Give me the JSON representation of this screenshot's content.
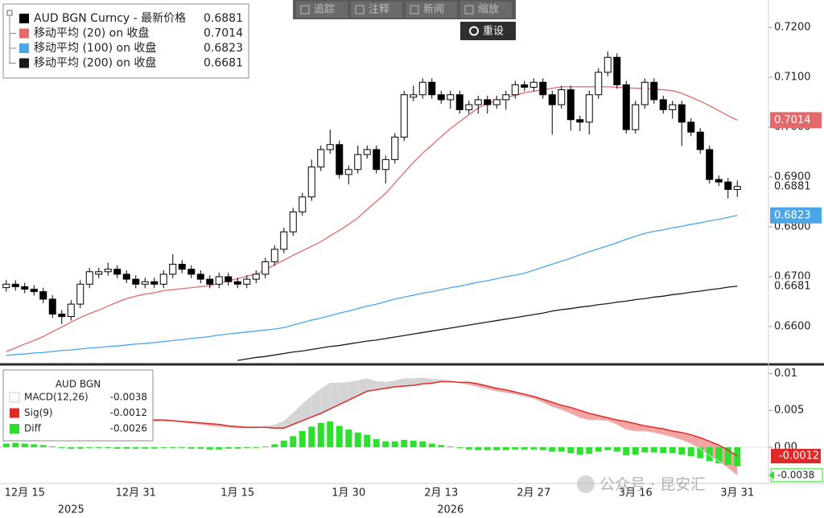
{
  "chart_data": [
    {
      "type": "candlestick",
      "name": "AUD BGN Curncy - 最新价格",
      "up_color": "#ffffff",
      "down_color": "#000000",
      "categories": [
        null,
        null,
        "12月 15",
        null,
        null,
        null,
        null,
        null,
        null,
        null,
        null,
        null,
        null,
        null,
        "12月 31",
        null,
        null,
        null,
        null,
        null,
        null,
        null,
        null,
        null,
        null,
        "1月 15",
        null,
        null,
        null,
        null,
        null,
        null,
        null,
        null,
        null,
        null,
        null,
        "1月 30",
        null,
        null,
        null,
        null,
        null,
        null,
        null,
        null,
        null,
        "2月 13",
        null,
        null,
        null,
        null,
        null,
        null,
        null,
        null,
        null,
        "2月 27",
        null,
        null,
        null,
        null,
        null,
        null,
        null,
        null,
        null,
        null,
        "3月 16",
        null,
        null,
        null,
        null,
        null,
        null,
        null,
        null,
        null,
        null,
        "3月 31"
      ],
      "years": [
        null,
        null,
        null,
        null,
        null,
        null,
        null,
        "2025",
        null,
        null,
        null,
        null,
        null,
        null,
        null,
        null,
        null,
        null,
        null,
        null,
        null,
        null,
        null,
        null,
        null,
        null,
        null,
        null,
        null,
        null,
        null,
        null,
        null,
        null,
        null,
        null,
        null,
        null,
        null,
        null,
        null,
        null,
        null,
        null,
        null,
        null,
        null,
        null,
        "2026",
        null,
        null,
        null,
        null,
        null,
        null,
        null,
        null,
        null,
        null,
        null,
        null,
        null,
        null,
        null,
        null,
        null,
        null,
        null,
        null,
        null,
        null,
        null,
        null,
        null,
        null,
        null,
        null,
        null,
        null,
        null
      ],
      "open": [
        0.6678,
        0.6685,
        0.668,
        0.6675,
        0.667,
        0.6655,
        0.6625,
        0.662,
        0.6645,
        0.6685,
        0.6705,
        0.671,
        0.6715,
        0.6705,
        0.6695,
        0.6685,
        0.669,
        0.6685,
        0.6705,
        0.6725,
        0.6715,
        0.6705,
        0.6695,
        0.6685,
        0.67,
        0.669,
        0.6685,
        0.6695,
        0.6705,
        0.673,
        0.6755,
        0.679,
        0.683,
        0.686,
        0.692,
        0.6955,
        0.6965,
        0.6905,
        0.6915,
        0.6945,
        0.6955,
        0.6915,
        0.6935,
        0.698,
        0.706,
        0.7065,
        0.709,
        0.7065,
        0.7055,
        0.7065,
        0.7035,
        0.7045,
        0.7055,
        0.7045,
        0.7055,
        0.7065,
        0.7085,
        0.708,
        0.709,
        0.7065,
        0.7045,
        0.7075,
        0.7015,
        0.701,
        0.7065,
        0.711,
        0.714,
        0.7085,
        0.6995,
        0.7045,
        0.709,
        0.7055,
        0.7035,
        0.7045,
        0.701,
        0.699,
        0.6955,
        0.6895,
        0.689,
        0.6875
      ],
      "high": [
        0.6693,
        0.6693,
        0.6688,
        0.6683,
        0.6678,
        0.6663,
        0.6633,
        0.6653,
        0.6693,
        0.6718,
        0.6718,
        0.6728,
        0.6723,
        0.6713,
        0.6703,
        0.6698,
        0.6698,
        0.6713,
        0.6745,
        0.6733,
        0.6723,
        0.6713,
        0.6703,
        0.6708,
        0.6708,
        0.6698,
        0.6703,
        0.6713,
        0.6738,
        0.6763,
        0.6798,
        0.6838,
        0.6868,
        0.6935,
        0.6963,
        0.6995,
        0.6973,
        0.6923,
        0.6963,
        0.6963,
        0.6963,
        0.6943,
        0.6988,
        0.7073,
        0.7083,
        0.7098,
        0.7098,
        0.7073,
        0.7073,
        0.7073,
        0.7053,
        0.7063,
        0.7063,
        0.7063,
        0.7073,
        0.7093,
        0.7093,
        0.7098,
        0.7098,
        0.7073,
        0.7083,
        0.7083,
        0.7023,
        0.7073,
        0.7118,
        0.7152,
        0.7148,
        0.7093,
        0.7053,
        0.7098,
        0.7098,
        0.7063,
        0.7053,
        0.7053,
        0.7018,
        0.6998,
        0.6963,
        0.6903,
        0.6898,
        0.6893
      ],
      "low": [
        0.667,
        0.6672,
        0.6667,
        0.6662,
        0.6647,
        0.6617,
        0.6605,
        0.6612,
        0.6637,
        0.6677,
        0.6697,
        0.6702,
        0.6697,
        0.6687,
        0.6677,
        0.6677,
        0.6677,
        0.6677,
        0.6697,
        0.6707,
        0.6697,
        0.6687,
        0.6677,
        0.6677,
        0.6682,
        0.6677,
        0.6677,
        0.6687,
        0.6697,
        0.6722,
        0.6747,
        0.6782,
        0.6822,
        0.6852,
        0.6912,
        0.6947,
        0.6897,
        0.6885,
        0.6907,
        0.6937,
        0.6907,
        0.6887,
        0.6927,
        0.6972,
        0.7052,
        0.7057,
        0.7057,
        0.7047,
        0.7037,
        0.7027,
        0.7027,
        0.7027,
        0.7027,
        0.7037,
        0.7035,
        0.7057,
        0.7072,
        0.7072,
        0.7057,
        0.6985,
        0.7037,
        0.6993,
        0.6992,
        0.6985,
        0.7057,
        0.7102,
        0.7077,
        0.6987,
        0.6987,
        0.7037,
        0.7047,
        0.7027,
        0.7017,
        0.6962,
        0.6982,
        0.6947,
        0.6887,
        0.6882,
        0.6857,
        0.686
      ],
      "close": [
        0.6685,
        0.668,
        0.6675,
        0.667,
        0.6655,
        0.6625,
        0.662,
        0.6645,
        0.6685,
        0.671,
        0.671,
        0.6715,
        0.6705,
        0.6695,
        0.6685,
        0.669,
        0.6685,
        0.6705,
        0.6725,
        0.6715,
        0.6705,
        0.6695,
        0.6685,
        0.67,
        0.669,
        0.6685,
        0.6695,
        0.6705,
        0.673,
        0.6755,
        0.679,
        0.683,
        0.686,
        0.692,
        0.6955,
        0.6965,
        0.6905,
        0.6915,
        0.6945,
        0.6955,
        0.6915,
        0.6935,
        0.698,
        0.7065,
        0.7065,
        0.709,
        0.7065,
        0.7055,
        0.7065,
        0.7035,
        0.7045,
        0.7055,
        0.7045,
        0.7055,
        0.7065,
        0.7085,
        0.708,
        0.709,
        0.7065,
        0.7045,
        0.7075,
        0.7015,
        0.701,
        0.7065,
        0.711,
        0.714,
        0.7085,
        0.6995,
        0.7045,
        0.709,
        0.7055,
        0.7035,
        0.7045,
        0.701,
        0.699,
        0.6955,
        0.6895,
        0.689,
        0.6875,
        0.6881
      ],
      "series": [
        {
          "name": "移动平均 (20)  on 收盘",
          "color": "#e36a6a",
          "values": [
            0.655,
            0.6557,
            0.6565,
            0.6572,
            0.658,
            0.659,
            0.6599,
            0.6609,
            0.6618,
            0.6626,
            0.6633,
            0.6641,
            0.6649,
            0.6656,
            0.6661,
            0.6665,
            0.6668,
            0.6672,
            0.6674,
            0.6676,
            0.6678,
            0.668,
            0.6682,
            0.6687,
            0.6692,
            0.6696,
            0.6701,
            0.6705,
            0.6714,
            0.6724,
            0.6733,
            0.6743,
            0.6752,
            0.6761,
            0.677,
            0.6782,
            0.6793,
            0.6805,
            0.6818,
            0.6835,
            0.6851,
            0.6867,
            0.6888,
            0.6909,
            0.6929,
            0.6948,
            0.6964,
            0.6981,
            0.6997,
            0.7011,
            0.7025,
            0.7038,
            0.7048,
            0.7053,
            0.7059,
            0.7064,
            0.7069,
            0.7072,
            0.7075,
            0.7078,
            0.7081,
            0.7081,
            0.7081,
            0.7081,
            0.7081,
            0.7081,
            0.708,
            0.7079,
            0.7078,
            0.7077,
            0.7076,
            0.7075,
            0.7073,
            0.7068,
            0.706,
            0.7052,
            0.7043,
            0.7033,
            0.7023,
            0.7014
          ]
        },
        {
          "name": "移动平均 (100)  on 收盘",
          "color": "#4aa6e8",
          "values": [
            0.6542,
            0.6544,
            0.6545,
            0.6547,
            0.6548,
            0.655,
            0.6552,
            0.6553,
            0.6555,
            0.6557,
            0.6558,
            0.656,
            0.6561,
            0.6563,
            0.6565,
            0.6566,
            0.6568,
            0.657,
            0.6572,
            0.6574,
            0.6576,
            0.6578,
            0.658,
            0.6583,
            0.6585,
            0.6587,
            0.6589,
            0.6591,
            0.6593,
            0.6595,
            0.6598,
            0.6603,
            0.6608,
            0.6613,
            0.6617,
            0.6622,
            0.6627,
            0.6631,
            0.6636,
            0.6641,
            0.6645,
            0.665,
            0.6655,
            0.6659,
            0.6663,
            0.6667,
            0.667,
            0.6674,
            0.6678,
            0.6681,
            0.6685,
            0.6689,
            0.6692,
            0.6696,
            0.67,
            0.6703,
            0.6707,
            0.6713,
            0.6719,
            0.6725,
            0.6731,
            0.6737,
            0.6744,
            0.675,
            0.6756,
            0.6762,
            0.6768,
            0.6775,
            0.6781,
            0.6787,
            0.6791,
            0.6794,
            0.6798,
            0.6801,
            0.6805,
            0.6808,
            0.6812,
            0.6815,
            0.6819,
            0.6823
          ]
        },
        {
          "name": "移动平均 (200)  on 收盘",
          "color": "#1a1a1a",
          "values": [
            null,
            null,
            null,
            null,
            null,
            null,
            null,
            null,
            null,
            null,
            null,
            null,
            null,
            null,
            null,
            null,
            null,
            null,
            null,
            null,
            null,
            null,
            null,
            null,
            null,
            0.6532,
            0.6535,
            0.6538,
            0.654,
            0.6543,
            0.6546,
            0.6549,
            0.6551,
            0.6554,
            0.6557,
            0.656,
            0.6562,
            0.6565,
            0.6568,
            0.6571,
            0.6573,
            0.6576,
            0.6579,
            0.6582,
            0.6585,
            0.6588,
            0.6591,
            0.6594,
            0.6597,
            0.66,
            0.6603,
            0.6606,
            0.6609,
            0.6612,
            0.6615,
            0.6618,
            0.6621,
            0.6624,
            0.6627,
            0.6631,
            0.6634,
            0.6636,
            0.6639,
            0.6641,
            0.6644,
            0.6646,
            0.6649,
            0.6651,
            0.6654,
            0.6656,
            0.6659,
            0.6661,
            0.6664,
            0.6666,
            0.6669,
            0.6671,
            0.6674,
            0.6676,
            0.6679,
            0.6681
          ]
        }
      ],
      "ylim": [
        0.6529,
        0.7255
      ],
      "yticks": [
        {
          "value": 0.72,
          "label": "0.7200"
        },
        {
          "value": 0.71,
          "label": "0.7100"
        },
        {
          "value": 0.7,
          "label": "0.7000"
        },
        {
          "value": 0.69,
          "label": "0.6900"
        },
        {
          "value": 0.68,
          "label": "0.6800"
        },
        {
          "value": 0.67,
          "label": "0.6700"
        },
        {
          "value": 0.66,
          "label": "0.6600"
        }
      ]
    },
    {
      "type": "macd",
      "title": "AUD BGN",
      "series": [
        {
          "name": "MACD(12,26)",
          "color": "#d4d4d4",
          "negative_fill": "#f4a3a3",
          "values": [
            0.0039,
            0.004,
            0.004,
            0.0039,
            0.0039,
            0.0037,
            0.0036,
            0.0036,
            0.0037,
            0.0038,
            0.0038,
            0.0038,
            0.0037,
            0.0036,
            0.0036,
            0.0036,
            0.0035,
            0.0036,
            0.0035,
            0.0034,
            0.0032,
            0.0031,
            0.0029,
            0.0028,
            0.0027,
            0.0026,
            0.0026,
            0.0026,
            0.0028,
            0.003,
            0.0035,
            0.0046,
            0.0058,
            0.0069,
            0.0079,
            0.0087,
            0.0087,
            0.0088,
            0.009,
            0.0093,
            0.0089,
            0.0088,
            0.009,
            0.0093,
            0.0093,
            0.0094,
            0.0092,
            0.0092,
            0.009,
            0.0087,
            0.0085,
            0.0082,
            0.0079,
            0.0076,
            0.0074,
            0.0072,
            0.0069,
            0.0066,
            0.0061,
            0.0055,
            0.0051,
            0.0046,
            0.004,
            0.0037,
            0.0037,
            0.0036,
            0.0031,
            0.0024,
            0.0022,
            0.0022,
            0.002,
            0.0017,
            0.0014,
            0.001,
            0.0005,
            -0.0002,
            -0.0011,
            -0.0019,
            -0.0028,
            -0.0038
          ]
        },
        {
          "name": "Sig(9)",
          "color": "#e02a2a",
          "values": [
            0.0034,
            0.0034,
            0.0035,
            0.0035,
            0.0036,
            0.0036,
            0.0037,
            0.0038,
            0.0039,
            0.0039,
            0.0039,
            0.0039,
            0.0039,
            0.0038,
            0.0038,
            0.0038,
            0.0037,
            0.0037,
            0.0036,
            0.0035,
            0.0034,
            0.0033,
            0.0032,
            0.0031,
            0.0029,
            0.0028,
            0.0027,
            0.0027,
            0.0027,
            0.0026,
            0.0026,
            0.0031,
            0.0036,
            0.0041,
            0.0046,
            0.0052,
            0.0058,
            0.0064,
            0.007,
            0.0076,
            0.0078,
            0.008,
            0.0082,
            0.0083,
            0.0084,
            0.0086,
            0.0087,
            0.0089,
            0.0089,
            0.0088,
            0.0088,
            0.0086,
            0.0083,
            0.008,
            0.0078,
            0.0075,
            0.0072,
            0.0069,
            0.0065,
            0.0061,
            0.0057,
            0.0054,
            0.005,
            0.0046,
            0.0043,
            0.004,
            0.0037,
            0.0035,
            0.0032,
            0.0029,
            0.0027,
            0.0025,
            0.0022,
            0.002,
            0.0017,
            0.0013,
            0.0008,
            0.0003,
            -0.0004,
            -0.0012
          ]
        },
        {
          "name": "Diff",
          "color": "#2ee02e",
          "values": [
            0.0005,
            0.0006,
            0.0005,
            0.0004,
            0.0003,
            0.0001,
            -0.0001,
            -0.0002,
            -0.0002,
            -0.0001,
            -0.0001,
            -0.0001,
            -0.0002,
            -0.0002,
            -0.0002,
            -0.0002,
            -0.0002,
            -0.0001,
            -0.0001,
            -0.0001,
            -0.0002,
            -0.0002,
            -0.0003,
            -0.0003,
            -0.0002,
            -0.0002,
            -0.0001,
            -0.0001,
            0.0001,
            0.0004,
            0.0009,
            0.0015,
            0.0022,
            0.0028,
            0.0033,
            0.0035,
            0.0029,
            0.0024,
            0.002,
            0.0017,
            0.0011,
            0.0008,
            0.0008,
            0.001,
            0.0009,
            0.0008,
            0.0005,
            0.0003,
            0.0001,
            -0.0001,
            -0.0003,
            -0.0004,
            -0.0004,
            -0.0004,
            -0.0004,
            -0.0003,
            -0.0003,
            -0.0003,
            -0.0004,
            -0.0006,
            -0.0006,
            -0.0008,
            -0.001,
            -0.0009,
            -0.0006,
            -0.0004,
            -0.0006,
            -0.0011,
            -0.001,
            -0.0007,
            -0.0007,
            -0.0008,
            -0.0008,
            -0.001,
            -0.0012,
            -0.0015,
            -0.0019,
            -0.0022,
            -0.0024,
            -0.0026
          ]
        }
      ],
      "ylim": [
        -0.0048,
        0.0107
      ],
      "yticks": [
        0.01,
        0.005,
        {
          "value": 0,
          "label": "0.00"
        }
      ]
    }
  ],
  "toolbar": {
    "buttons": [
      "追踪",
      "注释",
      "新闻",
      "缩放"
    ],
    "reset": "重设"
  },
  "watermark": "公众号 · 昆安汇"
}
